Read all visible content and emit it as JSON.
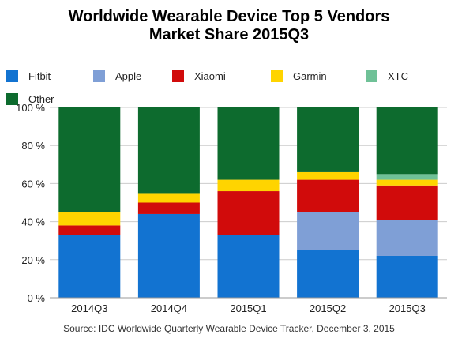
{
  "title_line1": "Worldwide Wearable Device Top 5 Vendors",
  "title_line2": "Market Share 2015Q3",
  "source": "Source: IDC Worldwide Quarterly Wearable Device Tracker, December 3, 2015",
  "colors": {
    "Fitbit": "#1273d1",
    "Apple": "#7f9fd6",
    "Xiaomi": "#d10b0b",
    "Garmin": "#ffd400",
    "XTC": "#6fc197",
    "Other": "#0d6b2e"
  },
  "chart_data": {
    "type": "bar",
    "stacked": true,
    "categories": [
      "2014Q3",
      "2014Q4",
      "2015Q1",
      "2015Q2",
      "2015Q3"
    ],
    "series": [
      {
        "name": "Fitbit",
        "values": [
          33,
          44,
          33,
          25,
          22
        ]
      },
      {
        "name": "Apple",
        "values": [
          0,
          0,
          0,
          20,
          19
        ]
      },
      {
        "name": "Xiaomi",
        "values": [
          5,
          6,
          23,
          17,
          18
        ]
      },
      {
        "name": "Garmin",
        "values": [
          7,
          5,
          6,
          4,
          3
        ]
      },
      {
        "name": "XTC",
        "values": [
          0,
          0,
          0,
          0,
          3
        ]
      },
      {
        "name": "Other",
        "values": [
          55,
          45,
          38,
          34,
          35
        ]
      }
    ],
    "yticks": [
      "0 %",
      "20 %",
      "40 %",
      "60 %",
      "80 %",
      "100 %"
    ],
    "ylim": [
      0,
      100
    ],
    "grid": true,
    "legend_position": "top"
  }
}
